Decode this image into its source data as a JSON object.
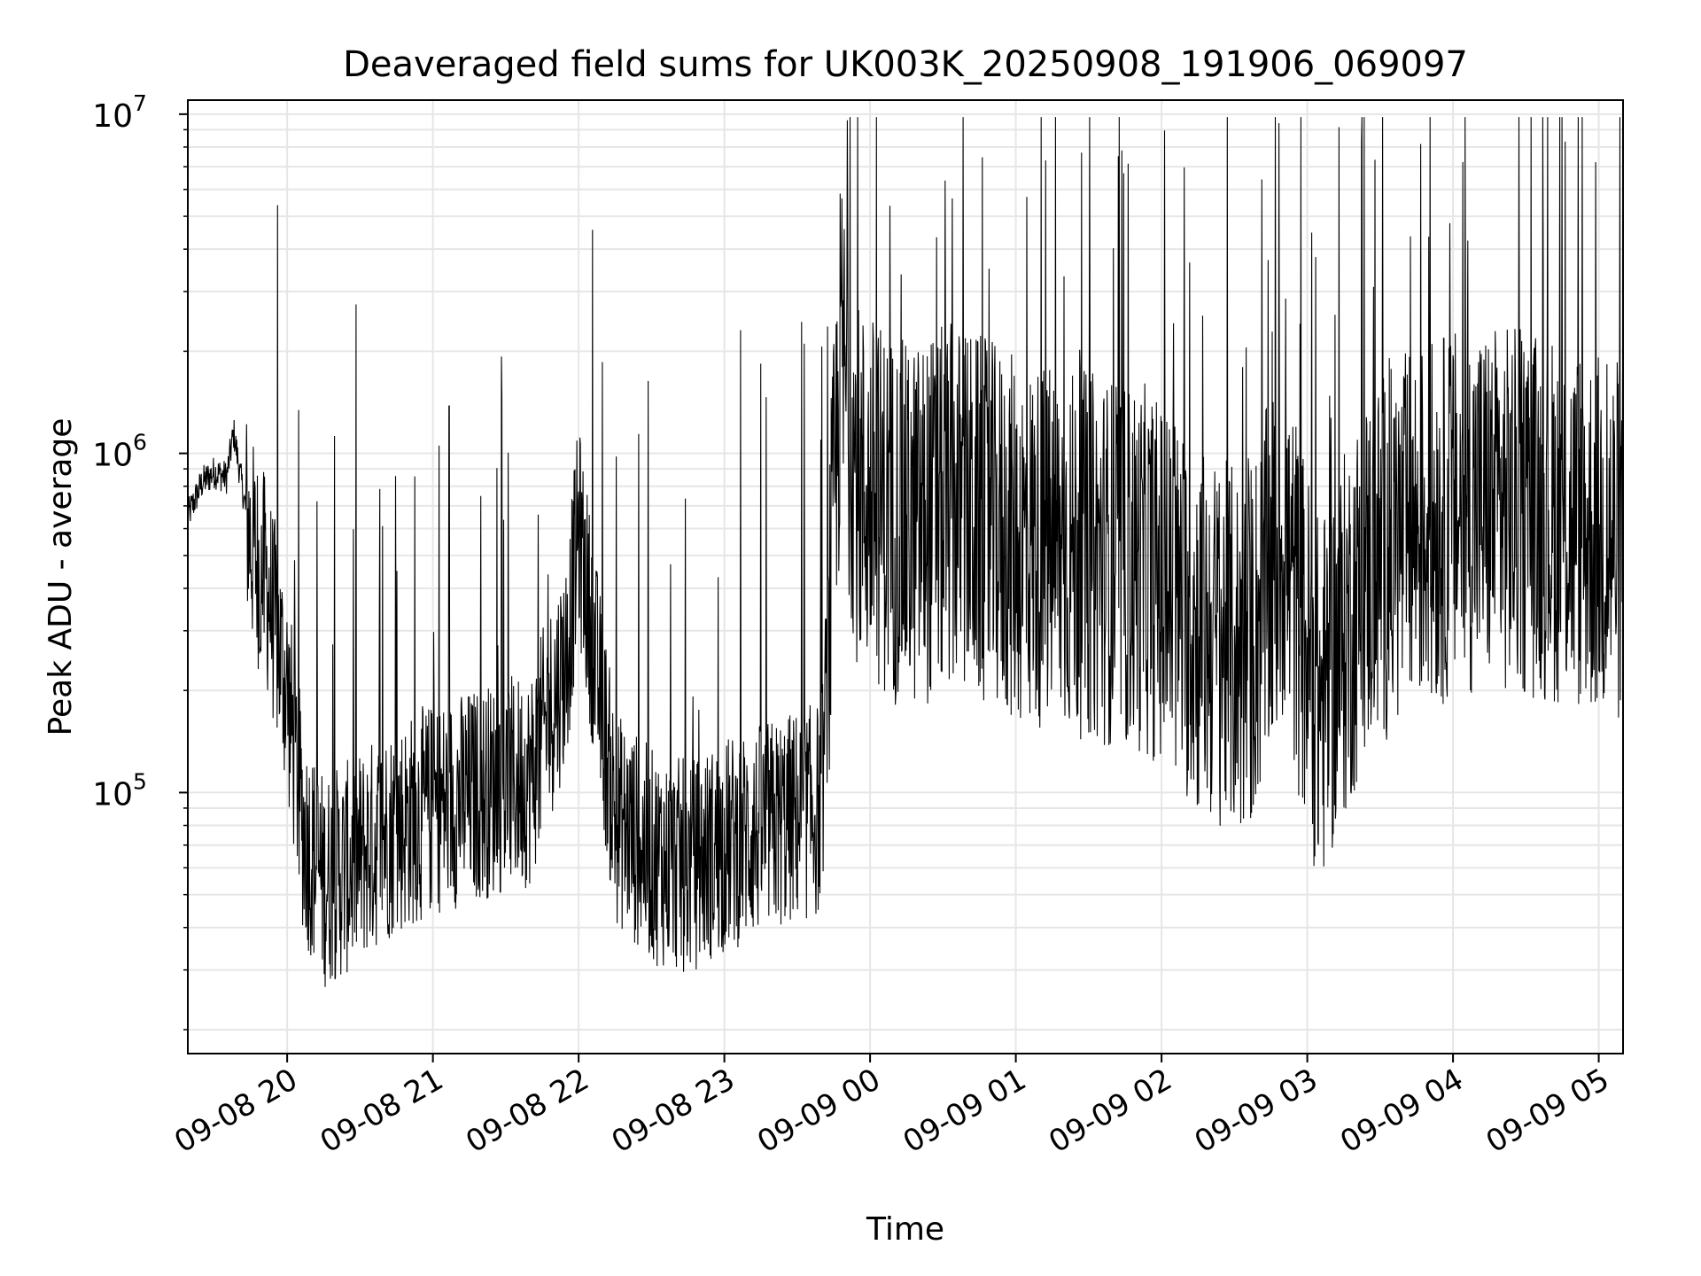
{
  "chart_data": {
    "type": "line",
    "title": "Deaveraged field sums for UK003K_20250908_191906_069097",
    "xlabel": "Time",
    "ylabel": "Peak ADU - average",
    "yscale": "log",
    "ylim": [
      17000,
      11000000
    ],
    "xlim": [
      "2025-09-08 19:19:06",
      "2025-09-09 05:10:00"
    ],
    "x_ticks": [
      "09-08 20",
      "09-08 21",
      "09-08 22",
      "09-08 23",
      "09-09 00",
      "09-09 01",
      "09-09 02",
      "09-09 03",
      "09-09 04",
      "09-09 05"
    ],
    "y_ticks": [
      {
        "base": "10",
        "exp": "5",
        "value": 100000
      },
      {
        "base": "10",
        "exp": "6",
        "value": 1000000
      },
      {
        "base": "10",
        "exp": "7",
        "value": 10000000
      }
    ],
    "grid": true,
    "line_color": "#000000",
    "series": [
      {
        "x": [
          "2025-09-08 19:19",
          "2025-09-08 19:25",
          "2025-09-08 19:30",
          "2025-09-08 19:35",
          "2025-09-08 19:38",
          "2025-09-08 19:45",
          "2025-09-08 19:52",
          "2025-09-08 20:00",
          "2025-09-08 20:07",
          "2025-09-08 20:15",
          "2025-09-08 20:25",
          "2025-09-08 20:40",
          "2025-09-08 21:00",
          "2025-09-08 21:20",
          "2025-09-08 21:40",
          "2025-09-08 21:55",
          "2025-09-08 22:00",
          "2025-09-08 22:15",
          "2025-09-08 22:30",
          "2025-09-08 22:45",
          "2025-09-08 23:00",
          "2025-09-08 23:20",
          "2025-09-08 23:40",
          "2025-09-08 23:48",
          "2025-09-08 23:55",
          "2025-09-09 00:15",
          "2025-09-09 00:35",
          "2025-09-09 01:00",
          "2025-09-09 01:30",
          "2025-09-09 01:55",
          "2025-09-09 02:15",
          "2025-09-09 02:35",
          "2025-09-09 02:50",
          "2025-09-09 03:05",
          "2025-09-09 03:25",
          "2025-09-09 03:45",
          "2025-09-09 04:10",
          "2025-09-09 04:40",
          "2025-09-09 05:05"
        ],
        "values": [
          650000,
          820000,
          880000,
          850000,
          1150000,
          550000,
          400000,
          200000,
          75000,
          55000,
          60000,
          75000,
          90000,
          100000,
          110000,
          250000,
          600000,
          85000,
          65000,
          60000,
          70000,
          80000,
          90000,
          2000000,
          800000,
          600000,
          700000,
          550000,
          500000,
          450000,
          300000,
          250000,
          550000,
          180000,
          450000,
          600000,
          700000,
          650000,
          550000
        ]
      }
    ]
  }
}
